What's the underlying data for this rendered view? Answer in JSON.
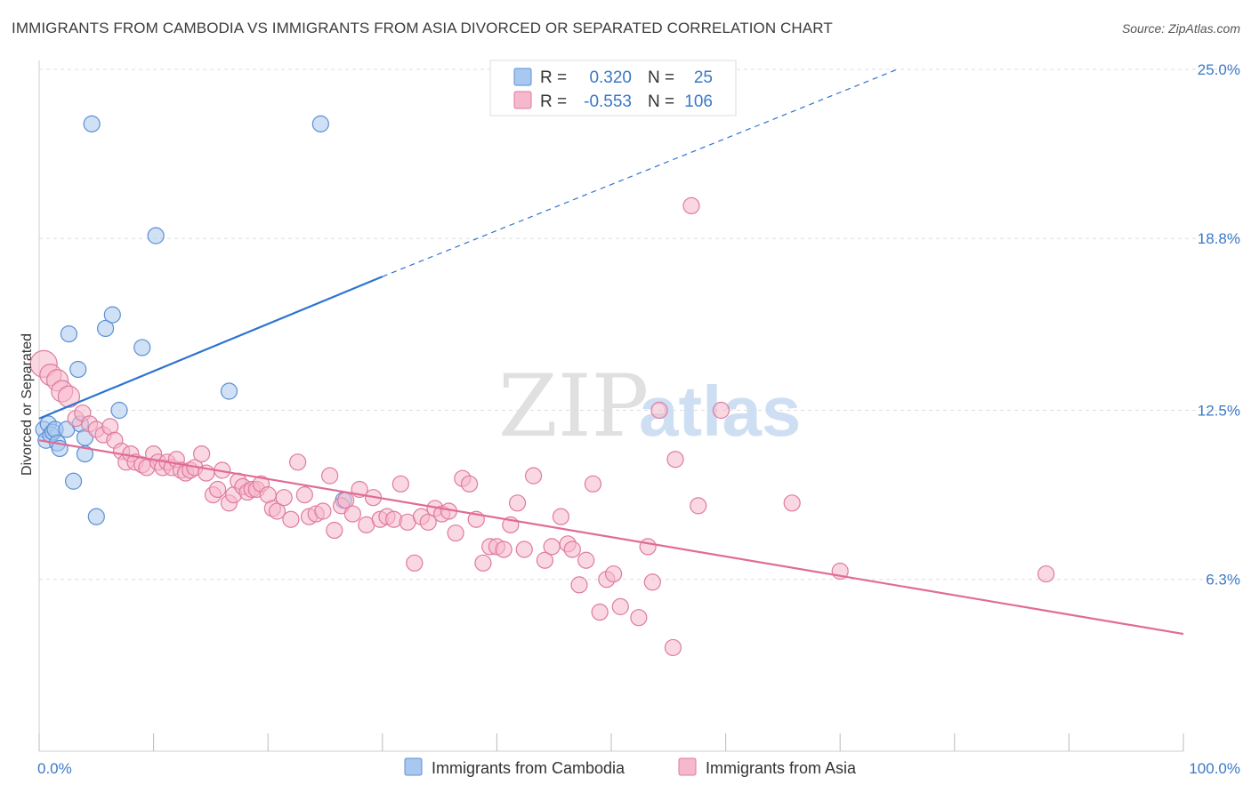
{
  "header": {
    "title": "IMMIGRANTS FROM CAMBODIA VS IMMIGRANTS FROM ASIA DIVORCED OR SEPARATED CORRELATION CHART",
    "source": "Source: ZipAtlas.com"
  },
  "watermark": {
    "zip": "ZIP",
    "atlas": "atlas"
  },
  "legend_box": {
    "rows": [
      {
        "r_label": "R =",
        "r_value": "0.320",
        "n_label": "N =",
        "n_value": "25",
        "color": "#a9c8ef",
        "stroke": "#5b8fd4"
      },
      {
        "r_label": "R =",
        "r_value": "-0.553",
        "n_label": "N =",
        "n_value": "106",
        "color": "#f6b8cb",
        "stroke": "#e07aa0"
      }
    ]
  },
  "chart_data": {
    "type": "scatter",
    "xlabel": "",
    "ylabel": "Divorced or Separated",
    "xlim": [
      0,
      100
    ],
    "ylim": [
      0,
      25
    ],
    "x_tick_labels": [
      "0.0%",
      "100.0%"
    ],
    "y_ticks": [
      6.3,
      12.5,
      18.8,
      25.0
    ],
    "y_tick_labels": [
      "6.3%",
      "12.5%",
      "18.8%",
      "25.0%"
    ],
    "grid": "horizontal dashed",
    "legend_position": "bottom",
    "series": [
      {
        "name": "Immigrants from Cambodia",
        "color": "#a9c8ef",
        "stroke": "#5b8fd4",
        "line_color": "#2d74d0",
        "trend": {
          "x0": 0,
          "y0": 12.2,
          "x1": 30,
          "y1": 17.4,
          "dash_x1": 75,
          "dash_y1": 25.0
        },
        "points": [
          [
            0.4,
            11.8
          ],
          [
            0.6,
            11.4
          ],
          [
            0.8,
            12.0
          ],
          [
            1.0,
            11.6
          ],
          [
            1.2,
            11.7
          ],
          [
            1.4,
            11.8
          ],
          [
            1.6,
            11.3
          ],
          [
            1.8,
            11.1
          ],
          [
            2.4,
            11.8
          ],
          [
            2.6,
            15.3
          ],
          [
            3.0,
            9.9
          ],
          [
            3.4,
            14.0
          ],
          [
            3.6,
            12.0
          ],
          [
            4.0,
            11.5
          ],
          [
            4.0,
            10.9
          ],
          [
            5.0,
            8.6
          ],
          [
            5.8,
            15.5
          ],
          [
            6.4,
            16.0
          ],
          [
            7.0,
            12.5
          ],
          [
            9.0,
            14.8
          ],
          [
            10.2,
            18.9
          ],
          [
            16.6,
            13.2
          ],
          [
            4.6,
            23.0
          ],
          [
            24.6,
            23.0
          ],
          [
            26.6,
            9.2
          ]
        ]
      },
      {
        "name": "Immigrants from Asia",
        "color": "#f6b8cb",
        "stroke": "#e07aa0",
        "line_color": "#e06b98",
        "trend": {
          "x0": 0,
          "y0": 11.4,
          "x1": 100,
          "y1": 4.3
        },
        "points": [
          [
            0.4,
            14.2
          ],
          [
            1.0,
            13.8
          ],
          [
            1.6,
            13.6
          ],
          [
            2.0,
            13.2
          ],
          [
            2.6,
            13.0
          ],
          [
            3.2,
            12.2
          ],
          [
            3.8,
            12.4
          ],
          [
            4.4,
            12.0
          ],
          [
            5.0,
            11.8
          ],
          [
            5.6,
            11.6
          ],
          [
            6.2,
            11.9
          ],
          [
            6.6,
            11.4
          ],
          [
            7.2,
            11.0
          ],
          [
            7.6,
            10.6
          ],
          [
            8.0,
            10.9
          ],
          [
            8.4,
            10.6
          ],
          [
            9.0,
            10.5
          ],
          [
            9.4,
            10.4
          ],
          [
            10.0,
            10.9
          ],
          [
            10.4,
            10.6
          ],
          [
            10.8,
            10.4
          ],
          [
            11.2,
            10.6
          ],
          [
            11.6,
            10.4
          ],
          [
            12.0,
            10.7
          ],
          [
            12.4,
            10.3
          ],
          [
            12.8,
            10.2
          ],
          [
            13.2,
            10.3
          ],
          [
            13.6,
            10.4
          ],
          [
            14.2,
            10.9
          ],
          [
            14.6,
            10.2
          ],
          [
            15.2,
            9.4
          ],
          [
            15.6,
            9.6
          ],
          [
            16.0,
            10.3
          ],
          [
            16.6,
            9.1
          ],
          [
            17.0,
            9.4
          ],
          [
            17.4,
            9.9
          ],
          [
            17.8,
            9.7
          ],
          [
            18.2,
            9.5
          ],
          [
            18.6,
            9.6
          ],
          [
            19.0,
            9.6
          ],
          [
            19.4,
            9.8
          ],
          [
            20.0,
            9.4
          ],
          [
            20.4,
            8.9
          ],
          [
            20.8,
            8.8
          ],
          [
            21.4,
            9.3
          ],
          [
            22.0,
            8.5
          ],
          [
            22.6,
            10.6
          ],
          [
            23.2,
            9.4
          ],
          [
            23.6,
            8.6
          ],
          [
            24.2,
            8.7
          ],
          [
            24.8,
            8.8
          ],
          [
            25.4,
            10.1
          ],
          [
            25.8,
            8.1
          ],
          [
            26.4,
            9.0
          ],
          [
            26.8,
            9.2
          ],
          [
            27.4,
            8.7
          ],
          [
            28.0,
            9.6
          ],
          [
            28.6,
            8.3
          ],
          [
            29.2,
            9.3
          ],
          [
            29.8,
            8.5
          ],
          [
            30.4,
            8.6
          ],
          [
            31.0,
            8.5
          ],
          [
            31.6,
            9.8
          ],
          [
            32.2,
            8.4
          ],
          [
            32.8,
            6.9
          ],
          [
            33.4,
            8.6
          ],
          [
            34.0,
            8.4
          ],
          [
            34.6,
            8.9
          ],
          [
            35.2,
            8.7
          ],
          [
            35.8,
            8.8
          ],
          [
            36.4,
            8.0
          ],
          [
            37.0,
            10.0
          ],
          [
            37.6,
            9.8
          ],
          [
            38.2,
            8.5
          ],
          [
            38.8,
            6.9
          ],
          [
            39.4,
            7.5
          ],
          [
            40.0,
            7.5
          ],
          [
            40.6,
            7.4
          ],
          [
            41.2,
            8.3
          ],
          [
            41.8,
            9.1
          ],
          [
            42.4,
            7.4
          ],
          [
            43.2,
            10.1
          ],
          [
            44.2,
            7.0
          ],
          [
            44.8,
            7.5
          ],
          [
            45.6,
            8.6
          ],
          [
            46.2,
            7.6
          ],
          [
            46.6,
            7.4
          ],
          [
            47.2,
            6.1
          ],
          [
            47.8,
            7.0
          ],
          [
            48.4,
            9.8
          ],
          [
            49.0,
            5.1
          ],
          [
            49.6,
            6.3
          ],
          [
            50.2,
            6.5
          ],
          [
            50.8,
            5.3
          ],
          [
            52.4,
            4.9
          ],
          [
            53.2,
            7.5
          ],
          [
            53.6,
            6.2
          ],
          [
            55.4,
            3.8
          ],
          [
            54.2,
            12.5
          ],
          [
            55.6,
            10.7
          ],
          [
            57.0,
            20.0
          ],
          [
            59.6,
            12.5
          ],
          [
            65.8,
            9.1
          ],
          [
            70.0,
            6.6
          ],
          [
            88.0,
            6.5
          ],
          [
            57.6,
            9.0
          ]
        ]
      }
    ]
  }
}
